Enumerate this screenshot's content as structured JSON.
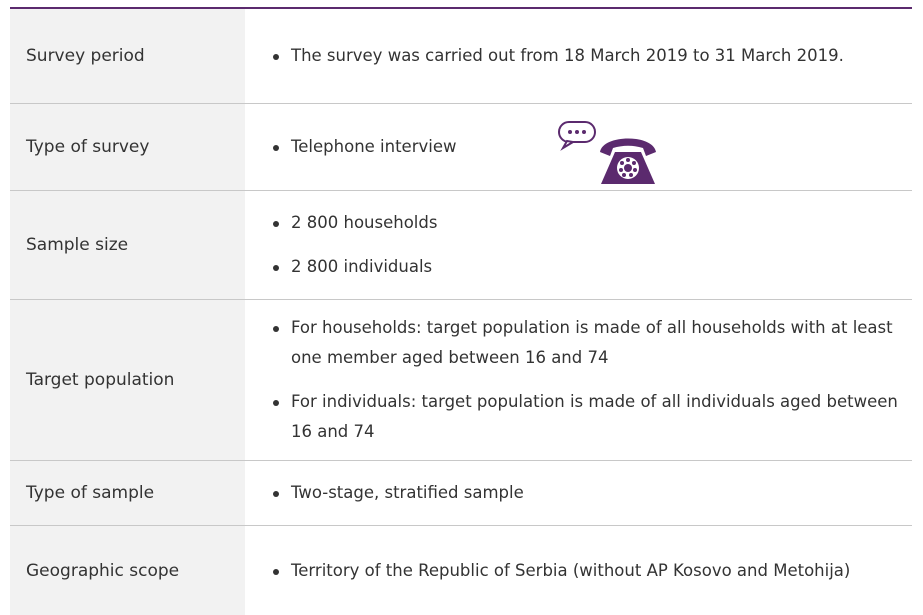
{
  "table": {
    "rows": [
      {
        "label": "Survey period",
        "items": [
          "The survey was carried out from 18 March 2019 to 31 March 2019."
        ]
      },
      {
        "label": "Type of survey",
        "items": [
          "Telephone interview"
        ]
      },
      {
        "label": "Sample size",
        "items": [
          "2 800 households",
          "2 800 individuals"
        ]
      },
      {
        "label": "Target population",
        "items": [
          "For households: target population is made of all households with at least one member aged between 16 and 74",
          "For individuals: target population is made of all individuals aged between 16 and 74"
        ]
      },
      {
        "label": "Type of sample",
        "items": [
          "Two-stage, stratified sample"
        ]
      },
      {
        "label": "Geographic scope",
        "items": [
          "Territory of the Republic of Serbia (without AP Kosovo and Metohija)"
        ]
      }
    ]
  }
}
